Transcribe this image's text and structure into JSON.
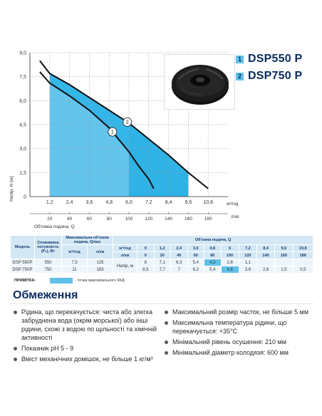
{
  "chart_data": {
    "type": "area",
    "ylabel": "Напір, Н (м)",
    "xlabel": "Об'ємна подача, Q",
    "x_unit": "м³/год",
    "x2_unit": "л/хв",
    "xlim": [
      0,
      12
    ],
    "ylim": [
      0,
      9
    ],
    "x_ticks": [
      "0",
      "1,2",
      "2,4",
      "3,6",
      "4,8",
      "6,0",
      "7,2",
      "8,4",
      "9,6",
      "10,8"
    ],
    "x2_ticks": [
      "0",
      "20",
      "40",
      "60",
      "80",
      "100",
      "120",
      "140",
      "160",
      "180"
    ],
    "y_ticks": [
      "0",
      "1,5",
      "3,0",
      "4,5",
      "6,0",
      "7,5",
      "9,0"
    ],
    "series": [
      {
        "name": "1",
        "x": [
          0.6,
          1.2,
          2.4,
          3.6,
          4.8,
          6.0,
          6.6,
          7.2,
          7.5
        ],
        "y": [
          7.8,
          7.1,
          6.3,
          5.4,
          4.3,
          2.8,
          1.9,
          1.1,
          0.5
        ]
      },
      {
        "name": "2",
        "x": [
          0.6,
          1.2,
          2.4,
          3.6,
          4.8,
          6.0,
          7.2,
          8.4,
          9.6,
          10.8
        ],
        "y": [
          8.5,
          7.7,
          7.0,
          6.2,
          5.4,
          4.6,
          3.6,
          2.6,
          1.5,
          0.5
        ]
      }
    ],
    "band_1": [
      1.2,
      6.0
    ],
    "band_2": [
      6.0,
      9.6
    ]
  },
  "legend": [
    {
      "num": "1",
      "model": "DSP550 P"
    },
    {
      "num": "2",
      "model": "DSP750 P"
    }
  ],
  "table": {
    "h_model": "Модель",
    "h_power": "Споживана потужність (P₁), Вт",
    "h_maxflow": "Максимальна об'ємна подача, Qmax",
    "h_flow": "Об'ємна подача, Q",
    "u_m3h": "м³/год",
    "u_lmin": "л/хв",
    "u_head": "Напір, м",
    "q_m3h": [
      "0",
      "1,2",
      "2,4",
      "3,6",
      "4,8",
      "6",
      "7,2",
      "8,4",
      "9,6",
      "10,8"
    ],
    "q_lmin": [
      "0",
      "20",
      "40",
      "60",
      "80",
      "100",
      "120",
      "140",
      "160",
      "180"
    ],
    "rows": [
      {
        "model": "DSP 550P",
        "power": "550",
        "qmax_m3h": "7,5",
        "qmax_lmin": "125",
        "heads": [
          "8",
          "7,1",
          "6,3",
          "5,4",
          "4,3",
          "2,8",
          "1,1",
          "",
          "",
          ""
        ]
      },
      {
        "model": "DSP 750P",
        "power": "750",
        "qmax_m3h": "11",
        "qmax_lmin": "183",
        "heads": [
          "8,5",
          "7,7",
          "7",
          "6,2",
          "5,4",
          "4,6",
          "3,6",
          "2,6",
          "1,5",
          "0,5"
        ]
      }
    ]
  },
  "note": {
    "label": "ПРИМІТКА:",
    "text": "- точка максимального ККД"
  },
  "section_title": "Обмеження",
  "bullets_left": [
    "Рідина, що перекачується: чиста або злегка забруднена вода (окрім морської) або інші рідини, схожі з водою по щільності та хімічній активності",
    "Показник рН 5 - 9",
    "Вміст механічних домішок, не більше 1 кг/м³"
  ],
  "bullets_right": [
    "Максимальний розмір часток, не більше 5 мм",
    "Максимальна температура рідини, що перекачується: +35°С",
    "Мінімальний рівень осушення: 210 мм",
    "Мінімальний діаметр колодязя: 600 мм"
  ]
}
